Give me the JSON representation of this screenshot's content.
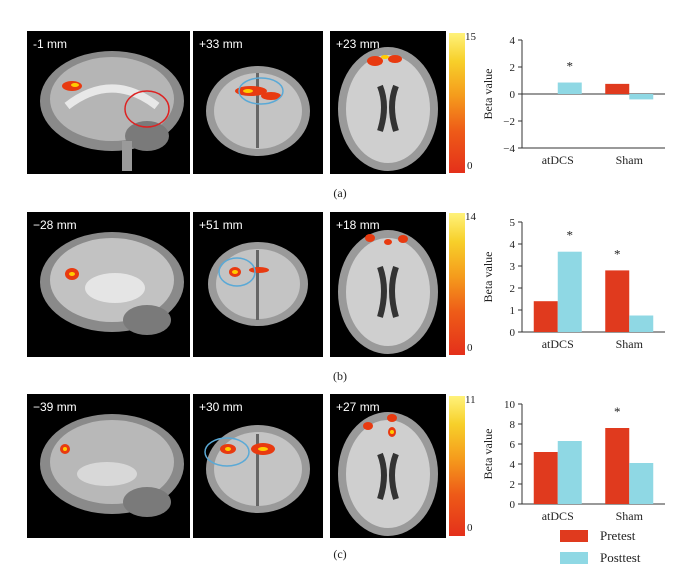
{
  "rows": [
    {
      "caption": "(a)",
      "slice_labels": [
        "-1 mm",
        "+33 mm",
        "+23 mm"
      ],
      "colorbar": {
        "max": "15",
        "min": "0"
      },
      "chart_data": {
        "type": "bar",
        "categories": [
          "atDCS",
          "Sham"
        ],
        "series": [
          {
            "name": "Pretest",
            "values": [
              0,
              0.75
            ]
          },
          {
            "name": "Posttest",
            "values": [
              0.85,
              -0.4
            ]
          }
        ],
        "ylabel": "Beta value",
        "ylim": [
          -4,
          4
        ],
        "yticks": [
          "4",
          "2",
          "0",
          "−2",
          "−4"
        ],
        "annotations": [
          "*"
        ]
      }
    },
    {
      "caption": "(b)",
      "slice_labels": [
        "−28 mm",
        "+51 mm",
        "+18 mm"
      ],
      "colorbar": {
        "max": "14",
        "min": "0"
      },
      "chart_data": {
        "type": "bar",
        "categories": [
          "atDCS",
          "Sham"
        ],
        "series": [
          {
            "name": "Pretest",
            "values": [
              1.4,
              2.8
            ]
          },
          {
            "name": "Posttest",
            "values": [
              3.65,
              0.75
            ]
          }
        ],
        "ylabel": "Beta value",
        "ylim": [
          0,
          5
        ],
        "yticks": [
          "5",
          "4",
          "3",
          "2",
          "1",
          "0"
        ],
        "annotations": [
          "*",
          "*"
        ]
      }
    },
    {
      "caption": "(c)",
      "slice_labels": [
        "−39 mm",
        "+30 mm",
        "+27 mm"
      ],
      "colorbar": {
        "max": "11",
        "min": "0"
      },
      "chart_data": {
        "type": "bar",
        "categories": [
          "atDCS",
          "Sham"
        ],
        "series": [
          {
            "name": "Pretest",
            "values": [
              5.2,
              7.6
            ]
          },
          {
            "name": "Posttest",
            "values": [
              6.3,
              4.1
            ]
          }
        ],
        "ylabel": "Beta value",
        "ylim": [
          0,
          10
        ],
        "yticks": [
          "10",
          "8",
          "6",
          "4",
          "2",
          "0"
        ],
        "annotations": [
          "*"
        ]
      }
    }
  ],
  "legend": [
    {
      "label": "Pretest",
      "color": "#e03a1e"
    },
    {
      "label": "Posttest",
      "color": "#8fd8e4"
    }
  ],
  "colors": {
    "pretest": "#e03a1e",
    "posttest": "#8fd8e4"
  }
}
